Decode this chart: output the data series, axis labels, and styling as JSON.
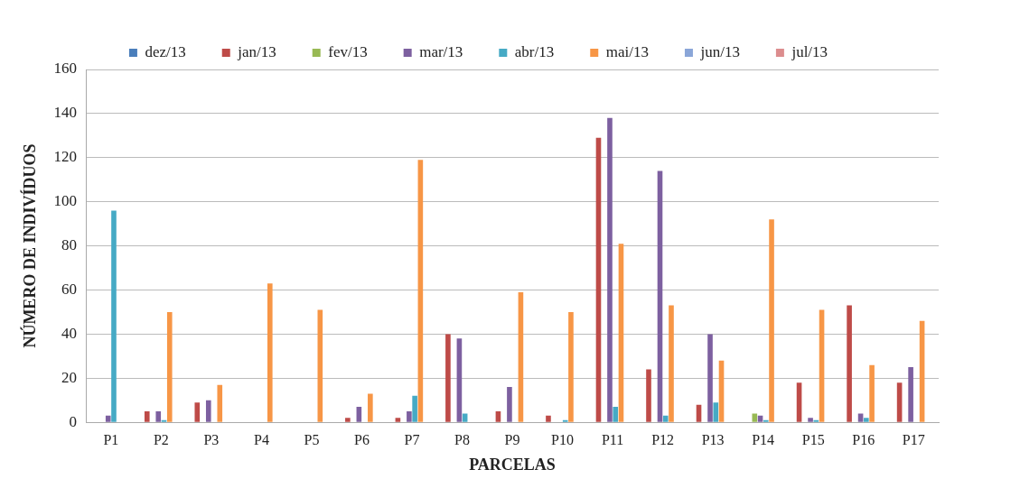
{
  "chart_data": {
    "type": "bar",
    "xlabel": "PARCELAS",
    "ylabel": "NÚMERO DE INDIVÍDUOS",
    "categories": [
      "P1",
      "P2",
      "P3",
      "P4",
      "P5",
      "P6",
      "P7",
      "P8",
      "P9",
      "P10",
      "P11",
      "P12",
      "P13",
      "P14",
      "P15",
      "P16",
      "P17"
    ],
    "series": [
      {
        "name": "dez/13",
        "color": "#4a7ebb",
        "values": [
          0,
          0,
          0,
          0,
          0,
          0,
          0,
          0,
          0,
          0,
          0,
          0,
          0,
          0,
          0,
          0,
          0
        ]
      },
      {
        "name": "jan/13",
        "color": "#be4b48",
        "values": [
          0,
          5,
          9,
          0,
          0,
          2,
          2,
          40,
          5,
          3,
          129,
          24,
          8,
          0,
          18,
          53,
          18
        ]
      },
      {
        "name": "fev/13",
        "color": "#98b954",
        "values": [
          0,
          0,
          0,
          0,
          0,
          0,
          0,
          0,
          0,
          0,
          0,
          0,
          0,
          4,
          0,
          0,
          0
        ]
      },
      {
        "name": "mar/13",
        "color": "#7d60a0",
        "values": [
          3,
          5,
          10,
          0,
          0,
          7,
          5,
          38,
          16,
          0,
          138,
          114,
          40,
          3,
          2,
          4,
          25
        ]
      },
      {
        "name": "abr/13",
        "color": "#46aac5",
        "values": [
          96,
          1,
          0,
          0,
          0,
          0,
          12,
          4,
          0,
          1,
          7,
          3,
          9,
          1,
          1,
          2,
          0
        ]
      },
      {
        "name": "mai/13",
        "color": "#f79646",
        "values": [
          0,
          50,
          17,
          63,
          51,
          13,
          119,
          0,
          59,
          50,
          81,
          53,
          28,
          92,
          51,
          26,
          46
        ]
      },
      {
        "name": "jun/13",
        "color": "#8aa6d8",
        "values": [
          0,
          0,
          0,
          0,
          0,
          0,
          0,
          0,
          0,
          0,
          0,
          0,
          0,
          0,
          0,
          0,
          0
        ]
      },
      {
        "name": "jul/13",
        "color": "#dc8d8e",
        "values": [
          0,
          0,
          0,
          0,
          0,
          0,
          0,
          0,
          0,
          0,
          0,
          0,
          0,
          0,
          0,
          0,
          0
        ]
      }
    ],
    "ylim": [
      0,
      160
    ],
    "yticks": [
      0,
      20,
      40,
      60,
      80,
      100,
      120,
      140,
      160
    ],
    "grid": "y",
    "legend": "top"
  }
}
